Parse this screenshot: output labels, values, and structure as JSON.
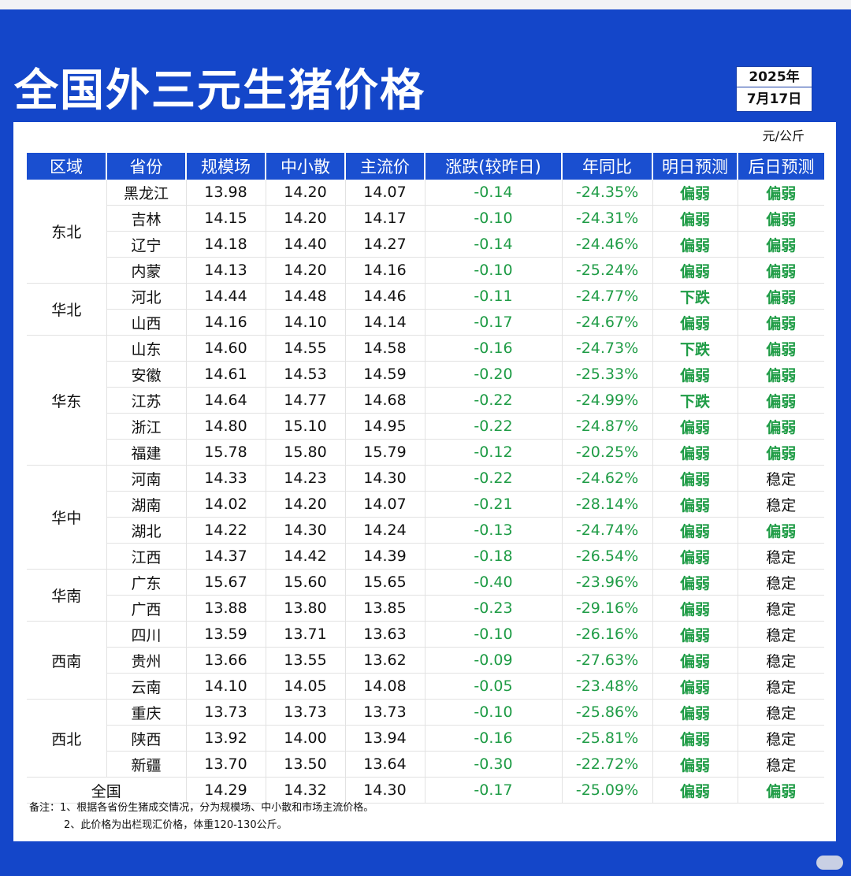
{
  "title": "全国外三元生猪价格",
  "date": {
    "year": "2025年",
    "day": "7月17日"
  },
  "unit": "元/公斤",
  "headers": [
    "区域",
    "省份",
    "规模场",
    "中小散",
    "主流价",
    "涨跌(较昨日)",
    "年同比",
    "明日预测",
    "后日预测"
  ],
  "groups": [
    {
      "region": "东北",
      "rows": [
        [
          "黑龙江",
          "13.98",
          "14.20",
          "14.07",
          "-0.14",
          "-24.35%",
          "偏弱",
          "偏弱"
        ],
        [
          "吉林",
          "14.15",
          "14.20",
          "14.17",
          "-0.10",
          "-24.31%",
          "偏弱",
          "偏弱"
        ],
        [
          "辽宁",
          "14.18",
          "14.40",
          "14.27",
          "-0.14",
          "-24.46%",
          "偏弱",
          "偏弱"
        ],
        [
          "内蒙",
          "14.13",
          "14.20",
          "14.16",
          "-0.10",
          "-25.24%",
          "偏弱",
          "偏弱"
        ]
      ]
    },
    {
      "region": "华北",
      "rows": [
        [
          "河北",
          "14.44",
          "14.48",
          "14.46",
          "-0.11",
          "-24.77%",
          "下跌",
          "偏弱"
        ],
        [
          "山西",
          "14.16",
          "14.10",
          "14.14",
          "-0.17",
          "-24.67%",
          "偏弱",
          "偏弱"
        ]
      ]
    },
    {
      "region": "华东",
      "rows": [
        [
          "山东",
          "14.60",
          "14.55",
          "14.58",
          "-0.16",
          "-24.73%",
          "下跌",
          "偏弱"
        ],
        [
          "安徽",
          "14.61",
          "14.53",
          "14.59",
          "-0.20",
          "-25.33%",
          "偏弱",
          "偏弱"
        ],
        [
          "江苏",
          "14.64",
          "14.77",
          "14.68",
          "-0.22",
          "-24.99%",
          "下跌",
          "偏弱"
        ],
        [
          "浙江",
          "14.80",
          "15.10",
          "14.95",
          "-0.22",
          "-24.87%",
          "偏弱",
          "偏弱"
        ],
        [
          "福建",
          "15.78",
          "15.80",
          "15.79",
          "-0.12",
          "-20.25%",
          "偏弱",
          "偏弱"
        ]
      ]
    },
    {
      "region": "华中",
      "rows": [
        [
          "河南",
          "14.33",
          "14.23",
          "14.30",
          "-0.22",
          "-24.62%",
          "偏弱",
          "稳定"
        ],
        [
          "湖南",
          "14.02",
          "14.20",
          "14.07",
          "-0.21",
          "-28.14%",
          "偏弱",
          "稳定"
        ],
        [
          "湖北",
          "14.22",
          "14.30",
          "14.24",
          "-0.13",
          "-24.74%",
          "偏弱",
          "偏弱"
        ],
        [
          "江西",
          "14.37",
          "14.42",
          "14.39",
          "-0.18",
          "-26.54%",
          "偏弱",
          "稳定"
        ]
      ]
    },
    {
      "region": "华南",
      "rows": [
        [
          "广东",
          "15.67",
          "15.60",
          "15.65",
          "-0.40",
          "-23.96%",
          "偏弱",
          "稳定"
        ],
        [
          "广西",
          "13.88",
          "13.80",
          "13.85",
          "-0.23",
          "-29.16%",
          "偏弱",
          "稳定"
        ]
      ]
    },
    {
      "region": "西南",
      "rows": [
        [
          "四川",
          "13.59",
          "13.71",
          "13.63",
          "-0.10",
          "-26.16%",
          "偏弱",
          "稳定"
        ],
        [
          "贵州",
          "13.66",
          "13.55",
          "13.62",
          "-0.09",
          "-27.63%",
          "偏弱",
          "稳定"
        ],
        [
          "云南",
          "14.10",
          "14.05",
          "14.08",
          "-0.05",
          "-23.48%",
          "偏弱",
          "稳定"
        ]
      ]
    },
    {
      "region": "西北",
      "rows": [
        [
          "重庆",
          "13.73",
          "13.73",
          "13.73",
          "-0.10",
          "-25.86%",
          "偏弱",
          "稳定"
        ],
        [
          "陕西",
          "13.92",
          "14.00",
          "13.94",
          "-0.16",
          "-25.81%",
          "偏弱",
          "稳定"
        ],
        [
          "新疆",
          "13.70",
          "13.50",
          "13.64",
          "-0.30",
          "-22.72%",
          "偏弱",
          "稳定"
        ]
      ]
    }
  ],
  "national": [
    "全国",
    "14.29",
    "14.32",
    "14.30",
    "-0.17",
    "-25.09%",
    "偏弱",
    "偏弱"
  ],
  "notes": [
    "备注：1、根据各省份生猪成交情况，分为规模场、中小散和市场主流价格。",
    "2、此价格为出栏现汇价格，体重120-130公斤。"
  ],
  "colors": {
    "background": "#1446c9",
    "header": "#1a4fd0",
    "green": "#1f9c46"
  }
}
